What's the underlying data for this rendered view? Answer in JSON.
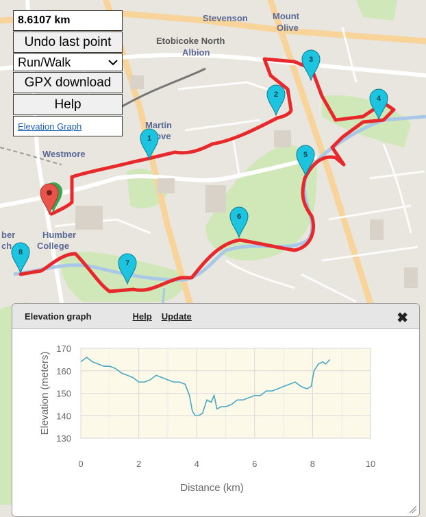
{
  "map": {
    "labels": [
      {
        "text": "Stevenson"
      },
      {
        "text": "Mount"
      },
      {
        "text": "Olive"
      },
      {
        "text": "Etobicoke North"
      },
      {
        "text": "Albion"
      },
      {
        "text": "Martin"
      },
      {
        "text": "Grove"
      },
      {
        "text": "Westmore"
      },
      {
        "text": "Humber"
      },
      {
        "text": "College"
      },
      {
        "text": "ber"
      },
      {
        "text": "ch"
      }
    ],
    "markers": [
      "1",
      "2",
      "3",
      "4",
      "5",
      "6",
      "7",
      "8"
    ],
    "route_color": "#e8292b",
    "marker_color": "#1cc4e0",
    "start_marker_color": "#e8534a"
  },
  "panel": {
    "distance": "8.6107 km",
    "undo_label": "Undo last point",
    "mode_value": "Run/Walk",
    "gpx_label": "GPX download",
    "help_label": "Help",
    "elevation_link": "Elevation Graph"
  },
  "elevation_window": {
    "title": "Elevation graph",
    "help": "Help",
    "update": "Update",
    "close_icon": "close-icon"
  },
  "chart_data": {
    "type": "line",
    "xlabel": "Distance (km)",
    "ylabel": "Elevation (meters)",
    "xlim": [
      0,
      10
    ],
    "ylim": [
      130,
      170
    ],
    "xticks": [
      0,
      2,
      4,
      6,
      8,
      10
    ],
    "yticks": [
      130,
      140,
      150,
      160,
      170
    ],
    "grid": true,
    "line_color": "#4aa7c3",
    "x": [
      0,
      0.2,
      0.4,
      0.6,
      0.8,
      1.0,
      1.2,
      1.4,
      1.6,
      1.8,
      2.0,
      2.2,
      2.4,
      2.6,
      2.8,
      3.0,
      3.2,
      3.4,
      3.6,
      3.75,
      3.85,
      3.95,
      4.05,
      4.2,
      4.35,
      4.5,
      4.6,
      4.7,
      4.85,
      5.0,
      5.2,
      5.4,
      5.6,
      5.8,
      6.0,
      6.2,
      6.4,
      6.6,
      6.8,
      7.0,
      7.2,
      7.4,
      7.6,
      7.8,
      7.95,
      8.05,
      8.2,
      8.35,
      8.45,
      8.6
    ],
    "y": [
      164,
      166,
      164,
      163,
      162,
      162,
      161,
      159,
      158,
      157,
      155,
      155,
      156,
      158,
      157,
      156,
      155,
      155,
      154,
      149,
      142,
      140,
      140,
      141,
      147,
      146,
      149,
      143,
      144,
      144,
      145,
      147,
      147,
      148,
      149,
      149,
      151,
      151,
      152,
      153,
      154,
      155,
      153,
      152,
      153,
      160,
      163,
      164,
      163,
      165
    ]
  }
}
